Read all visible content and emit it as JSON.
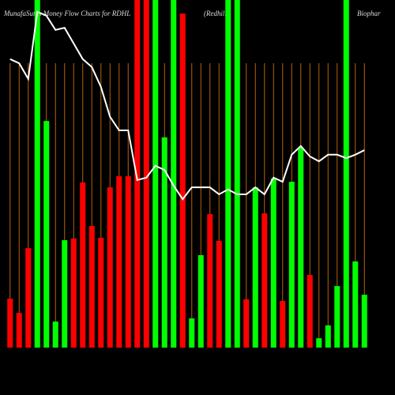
{
  "chart_data": {
    "type": "bar",
    "title_parts": [
      "MunafaSutra  Money Flow  Charts for RDHL",
      "(Redhill",
      "Biophar"
    ],
    "categories": [
      null,
      null,
      null,
      null,
      null,
      null,
      null,
      null,
      null,
      null,
      null,
      null,
      null,
      null,
      null,
      null,
      null,
      null,
      null,
      null,
      null,
      null,
      null,
      null,
      null,
      null,
      null,
      null,
      null,
      null,
      null,
      null,
      null,
      null,
      null,
      null,
      null,
      null,
      null,
      null
    ],
    "values": [
      14.1,
      10,
      28.6,
      100,
      65.2,
      7.5,
      30.9,
      31.4,
      47.5,
      35,
      31.6,
      46.1,
      49.3,
      49.3,
      100,
      100,
      100,
      60.5,
      100,
      96.1,
      8.4,
      26.6,
      38.4,
      30.7,
      100,
      100,
      13.9,
      46.1,
      38.6,
      48.6,
      13.4,
      47.7,
      57.5,
      20.9,
      2.7,
      6.4,
      17.7,
      100,
      24.8,
      15.2
    ],
    "colors": [
      "#ff0000",
      "#ff0000",
      "#ff0000",
      "#00ff00",
      "#00ff00",
      "#00ff00",
      "#00ff00",
      "#ff0000",
      "#ff0000",
      "#ff0000",
      "#ff0000",
      "#ff0000",
      "#ff0000",
      "#ff0000",
      "#ff0000",
      "#ff0000",
      "#00ff00",
      "#00ff00",
      "#00ff00",
      "#ff0000",
      "#00ff00",
      "#00ff00",
      "#ff0000",
      "#ff0000",
      "#00ff00",
      "#00ff00",
      "#ff0000",
      "#00ff00",
      "#ff0000",
      "#00ff00",
      "#ff0000",
      "#00ff00",
      "#00ff00",
      "#ff0000",
      "#00ff00",
      "#00ff00",
      "#00ff00",
      "#00ff00",
      "#00ff00",
      "#00ff00"
    ],
    "line": {
      "color": "#ffffff",
      "values": [
        83,
        81.8,
        77.3,
        96.6,
        95.5,
        91.4,
        92,
        87.5,
        83,
        80.7,
        75,
        66.4,
        62.5,
        62.5,
        48.2,
        48.9,
        52.3,
        51.1,
        46.6,
        42.7,
        46.1,
        46.1,
        46.1,
        44.1,
        45.5,
        44.1,
        44.1,
        46.1,
        44.1,
        48.9,
        47.7,
        55.5,
        58,
        55,
        53.6,
        55.5,
        55.5,
        54.5,
        55.5,
        56.8
      ]
    },
    "ylim": [
      0,
      100
    ],
    "grid": true,
    "grid_color": "#b8620a"
  }
}
